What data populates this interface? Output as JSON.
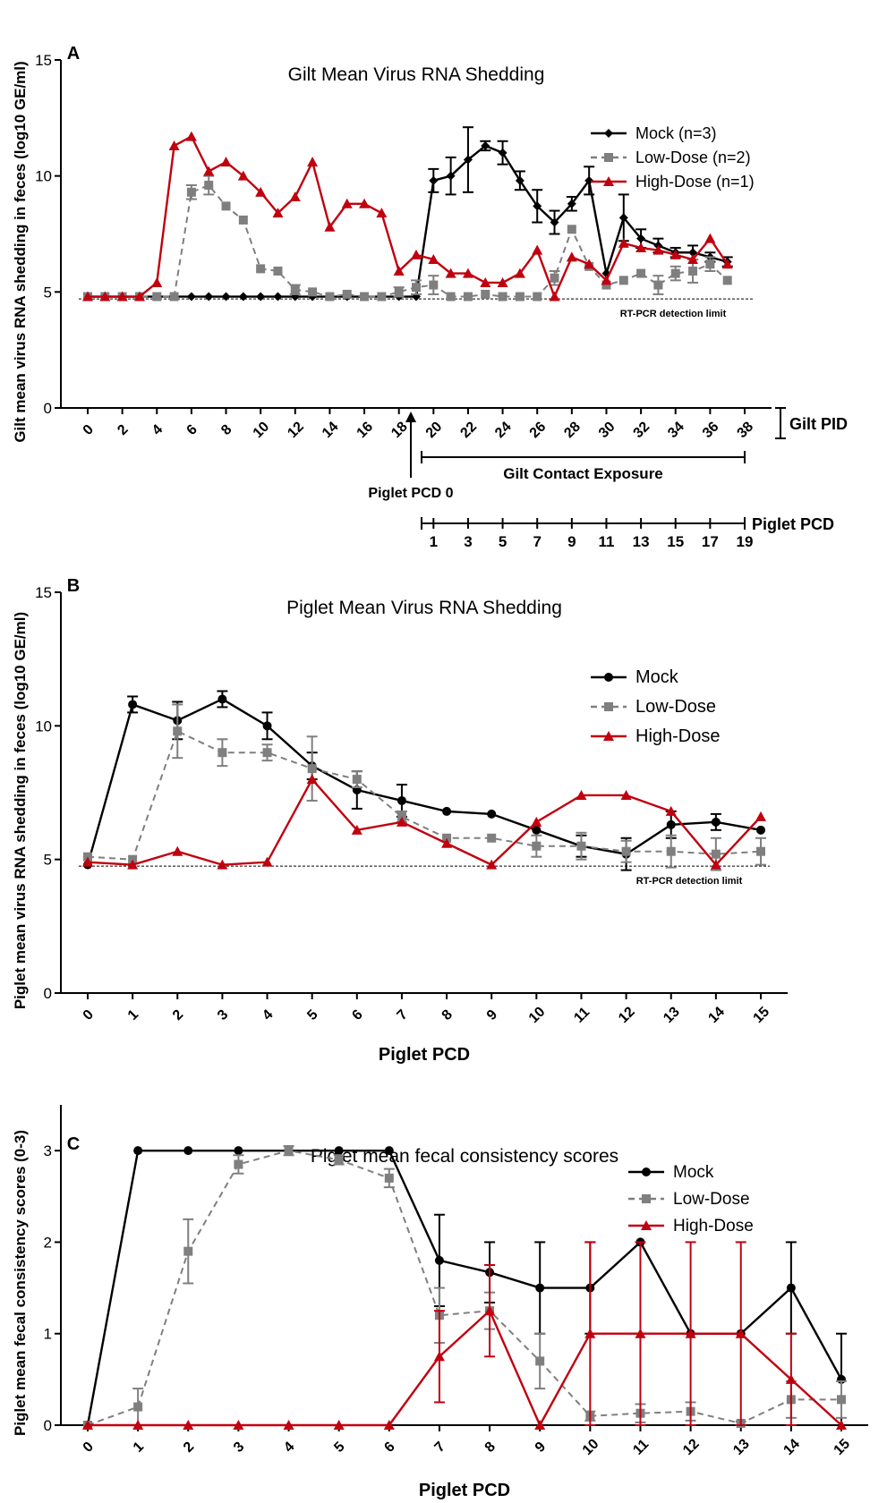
{
  "chart_data": [
    {
      "type": "line",
      "panel": "A",
      "title": "Gilt Mean Virus RNA Shedding",
      "ylabel": "Gilt mean virus RNA shedding in feces (log10 GE/ml)",
      "xlabel": "Gilt PID",
      "ylim": [
        0,
        15
      ],
      "xlim": [
        0,
        38
      ],
      "yticks": [
        0,
        5,
        10,
        15
      ],
      "xticks": [
        0,
        2,
        4,
        6,
        8,
        10,
        12,
        14,
        16,
        18,
        20,
        22,
        24,
        26,
        28,
        30,
        32,
        34,
        36,
        38
      ],
      "grid": false,
      "legend_position": "top-right",
      "detection_limit": {
        "value": 4.7,
        "label": "RT-PCR detection limit"
      },
      "secondary_axis": {
        "label": "Piglet PCD",
        "start_label": "Piglet PCD 0",
        "start_at": 19,
        "range_label": "Gilt Contact Exposure",
        "range": [
          19,
          38
        ],
        "ticks": [
          1,
          3,
          5,
          7,
          9,
          11,
          13,
          15,
          17,
          19
        ]
      },
      "series": [
        {
          "name": "Mock (n=3)",
          "color": "#000000",
          "marker": "diamond",
          "dash": false,
          "x": [
            0,
            1,
            2,
            3,
            4,
            5,
            6,
            7,
            8,
            9,
            10,
            11,
            12,
            13,
            14,
            15,
            16,
            17,
            18,
            19,
            20,
            21,
            22,
            23,
            24,
            25,
            26,
            27,
            28,
            29,
            30,
            31,
            32,
            33,
            34,
            35,
            36,
            37
          ],
          "y": [
            4.8,
            4.8,
            4.8,
            4.8,
            4.8,
            4.8,
            4.8,
            4.8,
            4.8,
            4.8,
            4.8,
            4.8,
            4.8,
            4.8,
            4.8,
            4.8,
            4.8,
            4.8,
            4.8,
            4.8,
            9.8,
            10.0,
            10.7,
            11.3,
            11.0,
            9.8,
            8.7,
            8.0,
            8.8,
            9.8,
            5.8,
            8.2,
            7.3,
            7.0,
            6.7,
            6.7,
            6.5,
            6.3
          ],
          "err": [
            0,
            0,
            0,
            0,
            0,
            0,
            0,
            0,
            0,
            0,
            0,
            0,
            0,
            0,
            0,
            0,
            0,
            0,
            0,
            0,
            0.5,
            0.8,
            1.4,
            0.2,
            0.5,
            0.4,
            0.7,
            0.5,
            0.3,
            0.6,
            0,
            1.0,
            0.4,
            0.3,
            0.2,
            0.3,
            0.2,
            0.2
          ]
        },
        {
          "name": "Low-Dose (n=2)",
          "color": "#7f7f7f",
          "marker": "square",
          "dash": true,
          "x": [
            0,
            1,
            2,
            3,
            4,
            5,
            6,
            7,
            8,
            9,
            10,
            11,
            12,
            13,
            14,
            15,
            16,
            17,
            18,
            19,
            20,
            21,
            22,
            23,
            24,
            25,
            26,
            27,
            28,
            29,
            30,
            31,
            32,
            33,
            34,
            35,
            36,
            37
          ],
          "y": [
            4.8,
            4.8,
            4.8,
            4.8,
            4.8,
            4.8,
            9.3,
            9.6,
            8.7,
            8.1,
            6.0,
            5.9,
            5.1,
            5.0,
            4.8,
            4.9,
            4.8,
            4.8,
            5.0,
            5.2,
            5.3,
            4.8,
            4.8,
            4.9,
            4.8,
            4.8,
            4.8,
            5.6,
            7.7,
            6.1,
            5.3,
            5.5,
            5.8,
            5.3,
            5.8,
            5.9,
            6.2,
            5.5
          ],
          "err": [
            0,
            0,
            0,
            0,
            0,
            0,
            0.3,
            0.4,
            0,
            0,
            0,
            0,
            0.2,
            0,
            0,
            0,
            0,
            0,
            0.2,
            0.3,
            0.4,
            0,
            0,
            0,
            0,
            0,
            0,
            0.3,
            0,
            0,
            0,
            0,
            0,
            0.4,
            0.3,
            0.5,
            0.3,
            0
          ]
        },
        {
          "name": "High-Dose (n=1)",
          "color": "#c0000f",
          "marker": "triangle",
          "dash": false,
          "x": [
            0,
            1,
            2,
            3,
            4,
            5,
            6,
            7,
            8,
            9,
            10,
            11,
            12,
            13,
            14,
            15,
            16,
            17,
            18,
            19,
            20,
            21,
            22,
            23,
            24,
            25,
            26,
            27,
            28,
            29,
            30,
            31,
            32,
            33,
            34,
            35,
            36,
            37
          ],
          "y": [
            4.8,
            4.8,
            4.8,
            4.8,
            5.4,
            11.3,
            11.7,
            10.2,
            10.6,
            10.0,
            9.3,
            8.4,
            9.1,
            10.6,
            7.8,
            8.8,
            8.8,
            8.4,
            5.9,
            6.6,
            6.4,
            5.8,
            5.8,
            5.4,
            5.4,
            5.8,
            6.8,
            4.8,
            6.5,
            6.2,
            5.5,
            7.1,
            6.9,
            6.8,
            6.6,
            6.4,
            7.3,
            6.2
          ],
          "err": []
        }
      ]
    },
    {
      "type": "line",
      "panel": "B",
      "title": "Piglet Mean Virus RNA Shedding",
      "ylabel": "Piglet mean virus RNA shedding in feces (log10 GE/ml)",
      "xlabel": "Piglet PCD",
      "ylim": [
        0,
        15
      ],
      "xlim": [
        0,
        15
      ],
      "yticks": [
        0,
        5,
        10,
        15
      ],
      "xticks": [
        0,
        1,
        2,
        3,
        4,
        5,
        6,
        7,
        8,
        9,
        10,
        11,
        12,
        13,
        14,
        15
      ],
      "grid": false,
      "legend_position": "top-right",
      "detection_limit": {
        "value": 4.75,
        "label": "RT-PCR detection limit"
      },
      "series": [
        {
          "name": "Mock",
          "color": "#000000",
          "marker": "circle",
          "dash": false,
          "x": [
            0,
            1,
            2,
            3,
            4,
            5,
            6,
            7,
            8,
            9,
            10,
            11,
            12,
            13,
            14,
            15
          ],
          "y": [
            4.8,
            10.8,
            10.2,
            11.0,
            10.0,
            8.5,
            7.6,
            7.2,
            6.8,
            6.7,
            6.1,
            5.5,
            5.2,
            6.3,
            6.4,
            6.1
          ],
          "err": [
            0,
            0.3,
            0.7,
            0.3,
            0.5,
            0.5,
            0.7,
            0.6,
            0,
            0,
            0,
            0.4,
            0.6,
            0.5,
            0.3,
            0
          ]
        },
        {
          "name": "Low-Dose",
          "color": "#7f7f7f",
          "marker": "square",
          "dash": true,
          "x": [
            0,
            1,
            2,
            3,
            4,
            5,
            6,
            7,
            8,
            9,
            10,
            11,
            12,
            13,
            14,
            15
          ],
          "y": [
            5.1,
            5.0,
            9.8,
            9.0,
            9.0,
            8.4,
            8.0,
            6.6,
            5.8,
            5.8,
            5.5,
            5.5,
            5.3,
            5.3,
            5.2,
            5.3
          ],
          "err": [
            0,
            0,
            1.0,
            0.5,
            0.3,
            1.2,
            0.3,
            0.2,
            0,
            0,
            0.4,
            0.5,
            0.4,
            0.6,
            0.6,
            0.5
          ]
        },
        {
          "name": "High-Dose",
          "color": "#c0000f",
          "marker": "triangle",
          "dash": false,
          "x": [
            0,
            1,
            2,
            3,
            4,
            5,
            6,
            7,
            8,
            9,
            10,
            11,
            12,
            13,
            14,
            15
          ],
          "y": [
            4.9,
            4.8,
            5.3,
            4.8,
            4.9,
            8.0,
            6.1,
            6.4,
            5.6,
            4.8,
            6.4,
            7.4,
            7.4,
            6.8,
            4.8,
            6.6
          ],
          "err": []
        }
      ]
    },
    {
      "type": "line",
      "panel": "C",
      "title": "Piglet mean fecal consistency scores",
      "ylabel": "Piglet mean fecal consistency scores (0-3)",
      "xlabel": "Piglet PCD",
      "ylim": [
        0,
        3.5
      ],
      "xlim": [
        0,
        15
      ],
      "yticks": [
        0,
        1,
        2,
        3
      ],
      "xticks": [
        0,
        1,
        2,
        3,
        4,
        5,
        6,
        7,
        8,
        9,
        10,
        11,
        12,
        13,
        14,
        15
      ],
      "grid": false,
      "legend_position": "top-right",
      "series": [
        {
          "name": "Mock",
          "color": "#000000",
          "marker": "circle",
          "dash": false,
          "x": [
            0,
            1,
            2,
            3,
            4,
            5,
            6,
            7,
            8,
            9,
            10,
            11,
            12,
            13,
            14,
            15
          ],
          "y": [
            0,
            3,
            3,
            3,
            3,
            3,
            3,
            1.8,
            1.67,
            1.5,
            1.5,
            2.0,
            1.0,
            1.0,
            1.5,
            0.5
          ],
          "err": [
            0,
            0,
            0,
            0,
            0,
            0,
            0,
            0.5,
            0.33,
            0.5,
            0.5,
            0,
            0,
            0,
            0.5,
            0.5
          ]
        },
        {
          "name": "Low-Dose",
          "color": "#7f7f7f",
          "marker": "square",
          "dash": true,
          "x": [
            0,
            1,
            2,
            3,
            4,
            5,
            6,
            7,
            8,
            9,
            10,
            11,
            12,
            13,
            14,
            15
          ],
          "y": [
            0,
            0.2,
            1.9,
            2.85,
            3.0,
            2.9,
            2.7,
            1.2,
            1.25,
            0.7,
            0.1,
            0.13,
            0.15,
            0.02,
            0.28,
            0.28
          ],
          "err": [
            0,
            0.2,
            0.35,
            0.1,
            0.05,
            0.05,
            0.1,
            0.3,
            0.2,
            0.3,
            0.05,
            0.1,
            0.1,
            0.02,
            0.2,
            0.2
          ]
        },
        {
          "name": "High-Dose",
          "color": "#c0000f",
          "marker": "triangle",
          "dash": false,
          "x": [
            0,
            1,
            2,
            3,
            4,
            5,
            6,
            7,
            8,
            9,
            10,
            11,
            12,
            13,
            14,
            15
          ],
          "y": [
            0,
            0,
            0,
            0,
            0,
            0,
            0,
            0.75,
            1.25,
            0,
            1.0,
            1.0,
            1.0,
            1.0,
            0.5,
            0
          ],
          "err": [
            0,
            0,
            0,
            0,
            0,
            0,
            0,
            0.5,
            0.5,
            0,
            1.0,
            1.0,
            1.0,
            1.0,
            0.5,
            0
          ]
        }
      ]
    }
  ]
}
